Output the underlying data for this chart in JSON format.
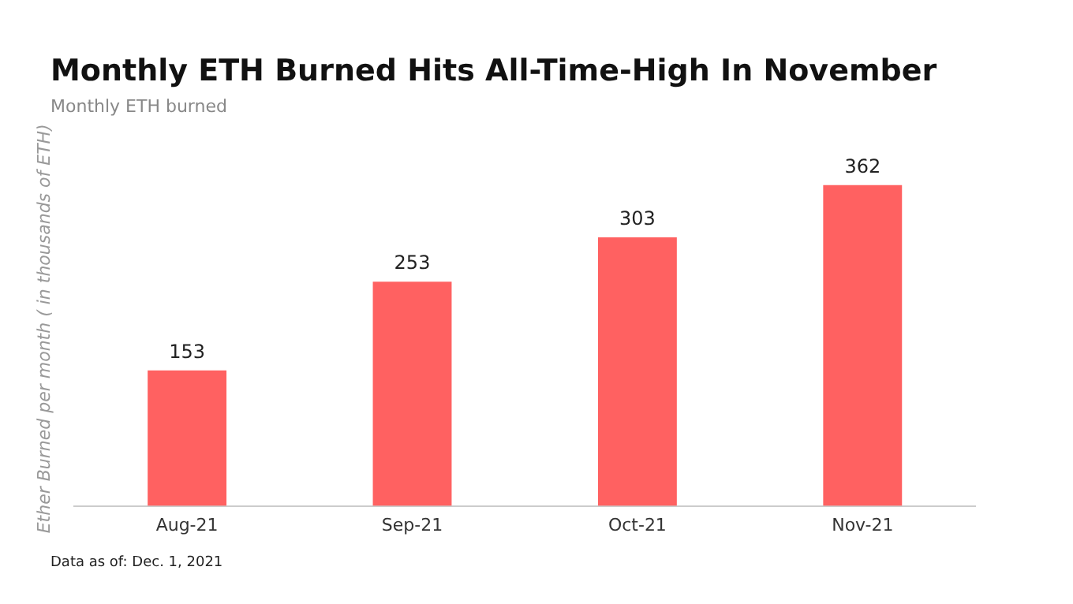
{
  "chart_data": {
    "type": "bar",
    "title": "Monthly ETH Burned Hits All-Time-High In November",
    "subtitle": "Monthly ETH burned",
    "ylabel": "Ether Burned per month ( in thousands of ETH)",
    "categories": [
      "Aug-21",
      "Sep-21",
      "Oct-21",
      "Nov-21"
    ],
    "values": [
      153,
      253,
      303,
      362
    ],
    "color": "#ff6161",
    "data_labels": true,
    "grid": false,
    "legend": false,
    "annotations": [
      "Data as of: Dec. 1, 2021"
    ]
  }
}
